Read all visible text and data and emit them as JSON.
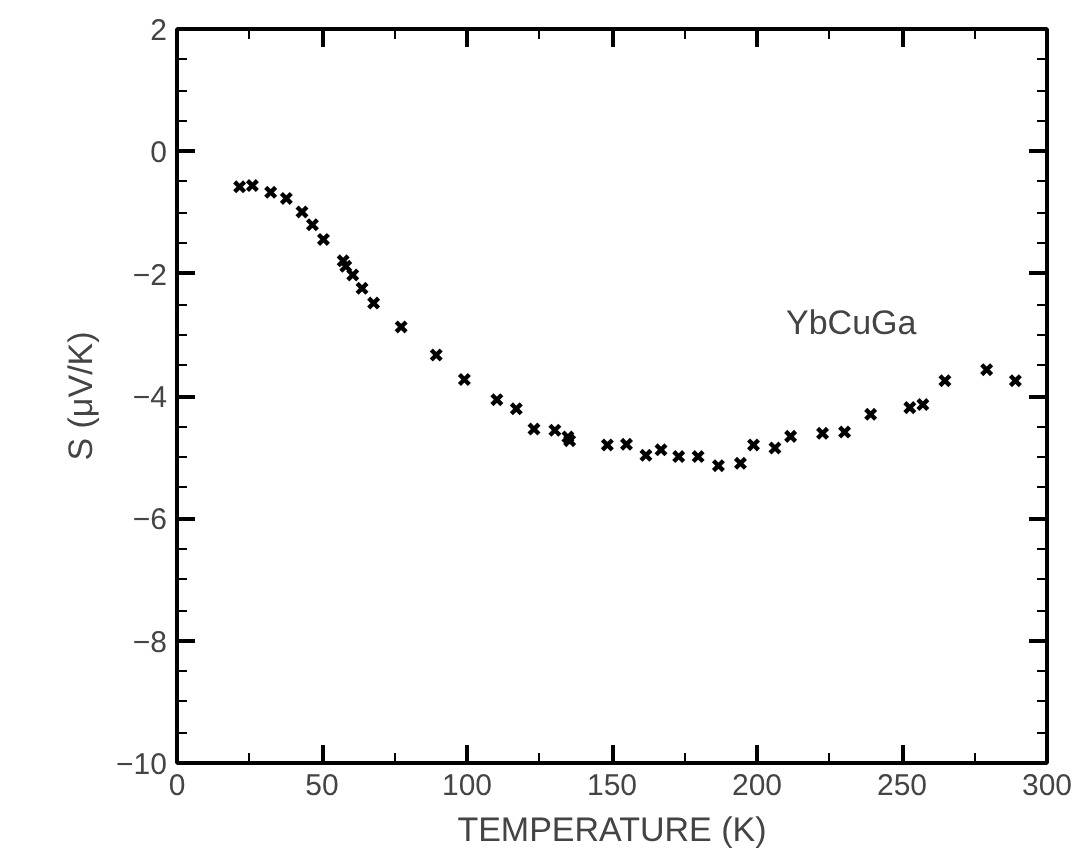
{
  "chart_data": {
    "type": "scatter",
    "xlabel": "TEMPERATURE (K)",
    "ylabel": "S (μV/K)",
    "annotations": [
      "YbCuGa"
    ],
    "marker": "cross",
    "grid": false,
    "xlim": [
      0,
      300
    ],
    "ylim": [
      -10,
      2
    ],
    "xticks": [
      0,
      50,
      100,
      150,
      200,
      250,
      300
    ],
    "yticks": [
      -10,
      -8,
      -6,
      -4,
      -2,
      0,
      2
    ],
    "x": [
      21.6,
      26,
      32.3,
      37.7,
      43.1,
      46.7,
      50.5,
      57.3,
      58.2,
      60.6,
      63.8,
      67.8,
      77.3,
      89.4,
      99.1,
      110.3,
      117,
      123.1,
      130.3,
      134.8,
      135.4,
      148.4,
      155,
      161.7,
      166.9,
      173,
      179.7,
      186.7,
      194.3,
      198.8,
      206.2,
      211.6,
      222.6,
      230.2,
      239.2,
      252.7,
      257.2,
      264.8,
      279.2,
      289.1
    ],
    "series": [
      {
        "color": "#000000",
        "values": [
          -0.58,
          -0.56,
          -0.67,
          -0.77,
          -0.99,
          -1.2,
          -1.44,
          -1.79,
          -1.88,
          -2.02,
          -2.24,
          -2.48,
          -2.87,
          -3.33,
          -3.73,
          -4.06,
          -4.21,
          -4.54,
          -4.56,
          -4.67,
          -4.73,
          -4.8,
          -4.79,
          -4.97,
          -4.88,
          -4.99,
          -4.99,
          -5.14,
          -5.1,
          -4.8,
          -4.85,
          -4.66,
          -4.61,
          -4.59,
          -4.3,
          -4.19,
          -4.14,
          -3.75,
          -3.57,
          -3.75
        ]
      }
    ]
  }
}
